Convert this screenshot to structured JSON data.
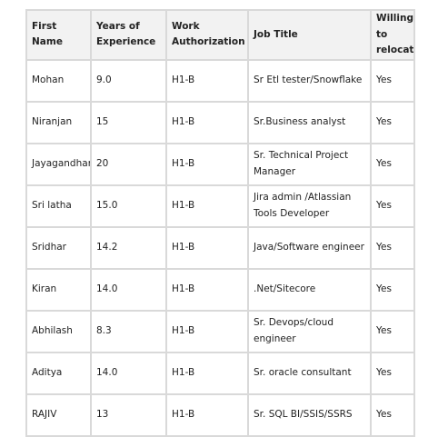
{
  "table": {
    "headers": [
      "First Name",
      "Years of Experience",
      "Work Authorization",
      "Job Title",
      "Willing to relocate"
    ],
    "rows": [
      [
        "Mohan",
        "9.0",
        "H1-B",
        "Sr Etl tester/Snowflake",
        "Yes"
      ],
      [
        "Niranjan",
        "15",
        "H1-B",
        "Sr.Business analyst",
        "Yes"
      ],
      [
        "Jayagandhan",
        "20",
        "H1-B",
        "Sr. Technical Project Manager",
        "Yes"
      ],
      [
        "Sri latha",
        "15.0",
        "H1-B",
        "Jira admin /Atlassian Tools Developer",
        "Yes"
      ],
      [
        "Sridhar",
        "14.2",
        "H1-B",
        "Java/Software engineer",
        "Yes"
      ],
      [
        "Kiran",
        "14.0",
        "H1-B",
        ".Net/Sitecore",
        "Yes"
      ],
      [
        "Abhilash",
        "8.3",
        "H1-B",
        "Sr. Devops/cloud engineer",
        "Yes"
      ],
      [
        "Aditya",
        "14.0",
        "H1-B",
        "Sr. oracle consultant",
        "Yes"
      ],
      [
        "RAJIV",
        "13",
        "H1-B",
        "Sr. SQL BI/SSIS/SSRS",
        "Yes"
      ]
    ]
  }
}
